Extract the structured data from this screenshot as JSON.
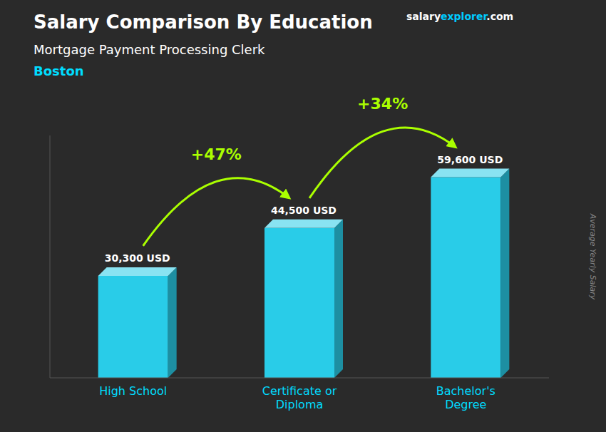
{
  "chart_data": {
    "type": "bar",
    "title": "Salary Comparison By Education",
    "subtitle": "Mortgage Payment Processing Clerk",
    "location": "Boston",
    "ylabel": "Average Yearly Salary",
    "categories": [
      "High School",
      "Certificate or\nDiploma",
      "Bachelor's\nDegree"
    ],
    "values": [
      30300,
      44500,
      59600
    ],
    "value_labels": [
      "30,300 USD",
      "44,500 USD",
      "59,600 USD"
    ],
    "data_labels": true,
    "color": "#29cce8",
    "ylim": [
      0,
      72000
    ],
    "tick_labels": "x",
    "grid": false,
    "annotations": [
      {
        "text": "+47%",
        "color": "#aaff00"
      },
      {
        "text": "+34%",
        "color": "#aaff00"
      }
    ],
    "brand": [
      "salary",
      "explorer",
      ".com"
    ]
  }
}
